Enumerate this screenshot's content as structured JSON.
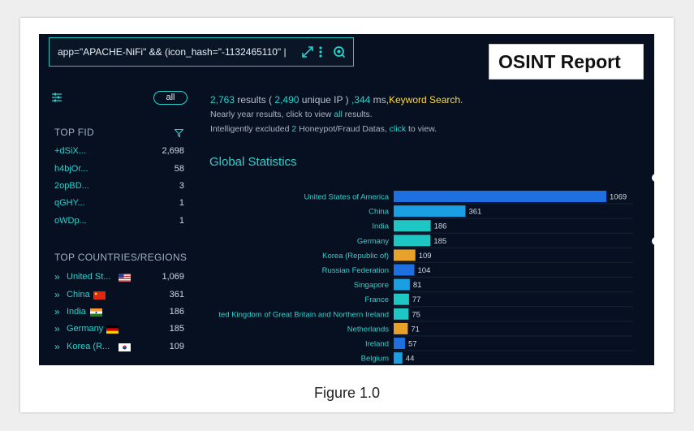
{
  "search": {
    "query": "app=\"APACHE-NiFi\" && (icon_hash=\"-1132465110\" |",
    "icons": [
      "expand-icon",
      "more-vertical-icon",
      "search-scan-icon"
    ]
  },
  "banner": {
    "title": "OSINT Report"
  },
  "sidebar": {
    "all_label": "all",
    "fid_title": "TOP FID",
    "fids": [
      {
        "label": "+dSiX...",
        "count": "2,698"
      },
      {
        "label": "h4bjOr...",
        "count": "58"
      },
      {
        "label": "2opBD...",
        "count": "3"
      },
      {
        "label": "qGHY...",
        "count": "1"
      },
      {
        "label": "oWDp...",
        "count": "1"
      }
    ],
    "countries_title": "TOP COUNTRIES/REGIONS",
    "countries": [
      {
        "label": "United St...",
        "flag": "us-flag",
        "count": "1,069"
      },
      {
        "label": "China",
        "flag": "china-flag",
        "count": "361"
      },
      {
        "label": "India",
        "flag": "india-flag",
        "count": "186"
      },
      {
        "label": "Germany",
        "flag": "germany-flag",
        "count": "185"
      },
      {
        "label": "Korea (R...",
        "flag": "korea-flag",
        "count": "109"
      }
    ]
  },
  "results": {
    "count": "2,763",
    "results_word": "results (",
    "unique_ip": "2,490",
    "unique_ip_word": "unique IP )",
    "ms": ",344",
    "ms_word": "ms",
    "keyword": ",Keyword Search",
    "period": ".",
    "line2_a": "Nearly year results, click to view",
    "line2_link": "all",
    "line2_b": "results.",
    "line3_a": "Intelligently excluded",
    "line3_n": "2",
    "line3_b": "Honeypot/Fraud Datas,",
    "line3_link": "click",
    "line3_c": "to view."
  },
  "global_title": "Global Statistics",
  "chart_data": {
    "type": "bar",
    "orientation": "horizontal",
    "categories": [
      "United States of America",
      "China",
      "India",
      "Germany",
      "Korea (Republic of)",
      "Russian Federation",
      "Singapore",
      "France",
      "ted Kingdom of Great Britain and Northern Ireland",
      "Netherlands",
      "Ireland",
      "Belgium"
    ],
    "values": [
      1069,
      361,
      186,
      185,
      109,
      104,
      81,
      77,
      75,
      71,
      57,
      44
    ],
    "colors": [
      "#1e6fe0",
      "#1a9fe2",
      "#1fc7c4",
      "#1fc7c4",
      "#e8a22a",
      "#1e6fe0",
      "#1a9fe2",
      "#1fc7c4",
      "#1fc7c4",
      "#e8a22a",
      "#1e6fe0",
      "#1a9fe2"
    ],
    "grid": true
  },
  "caption": "Figure 1.0"
}
